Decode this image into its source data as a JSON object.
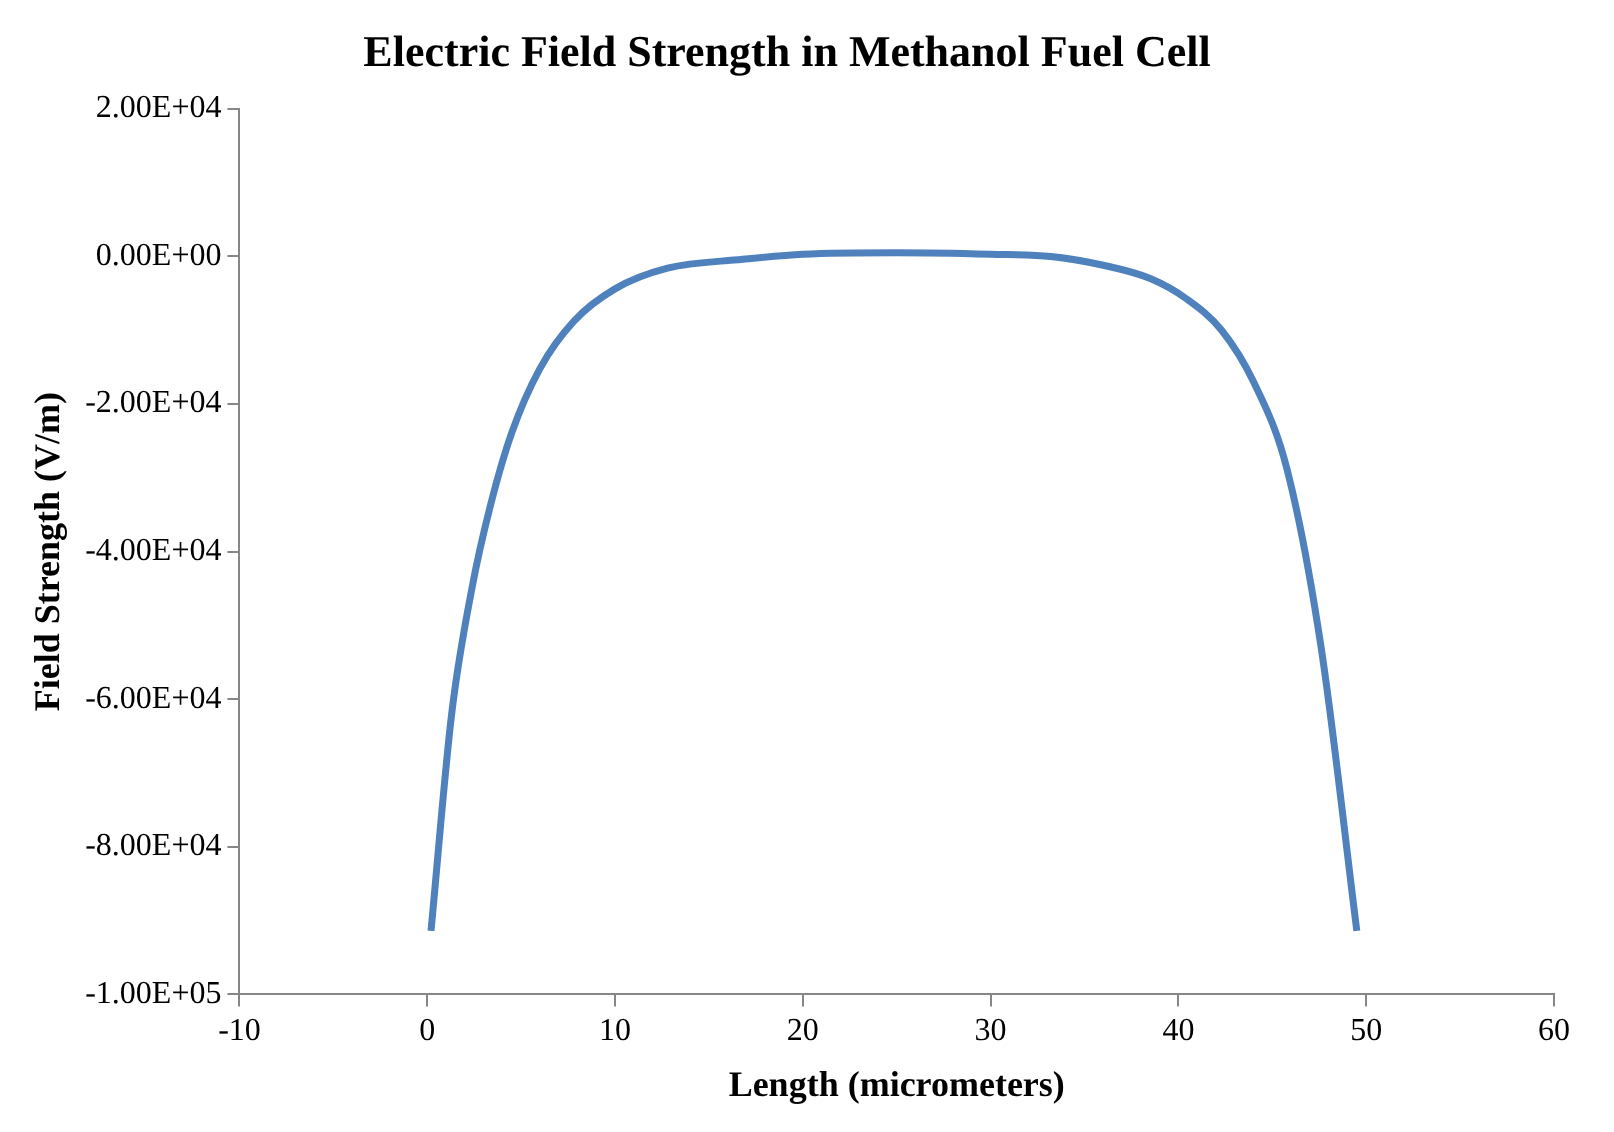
{
  "chart_data": {
    "type": "line",
    "title": "Electric Field Strength in Methanol Fuel Cell",
    "xlabel": "Length (micrometers)",
    "ylabel": "Field Strength (V/m)",
    "series": [
      {
        "color": "#4f81bd",
        "x": [
          0.2,
          1.3,
          2.4,
          3.4,
          4.5,
          6.0,
          7.8,
          10,
          12.8,
          16.8,
          20,
          25,
          30,
          33.2,
          36,
          38.5,
          40.4,
          42.3,
          44,
          45.8,
          47.6,
          49.5
        ],
        "values": [
          -91400,
          -62000,
          -44700,
          -33400,
          -23900,
          -15200,
          -8800,
          -4400,
          -1600,
          -400,
          300,
          500,
          300,
          0,
          -1200,
          -3000,
          -5700,
          -10000,
          -17000,
          -29000,
          -53000,
          -91400
        ]
      }
    ],
    "xlim": [
      -10,
      60
    ],
    "xticks": [
      -10,
      0,
      10,
      20,
      30,
      40,
      50,
      60
    ],
    "ylim": [
      -100000,
      20000
    ],
    "yticks": [
      {
        "value": -100000,
        "label": "-1.00E+05"
      },
      {
        "value": -80000,
        "label": "-8.00E+04"
      },
      {
        "value": -60000,
        "label": "-6.00E+04"
      },
      {
        "value": -40000,
        "label": "-4.00E+04"
      },
      {
        "value": -20000,
        "label": "-2.00E+04"
      },
      {
        "value": 0,
        "label": "0.00E+00"
      },
      {
        "value": 20000,
        "label": "2.00E+04"
      }
    ],
    "grid": false,
    "legend": false,
    "marker": "none",
    "line_style": "solid"
  }
}
